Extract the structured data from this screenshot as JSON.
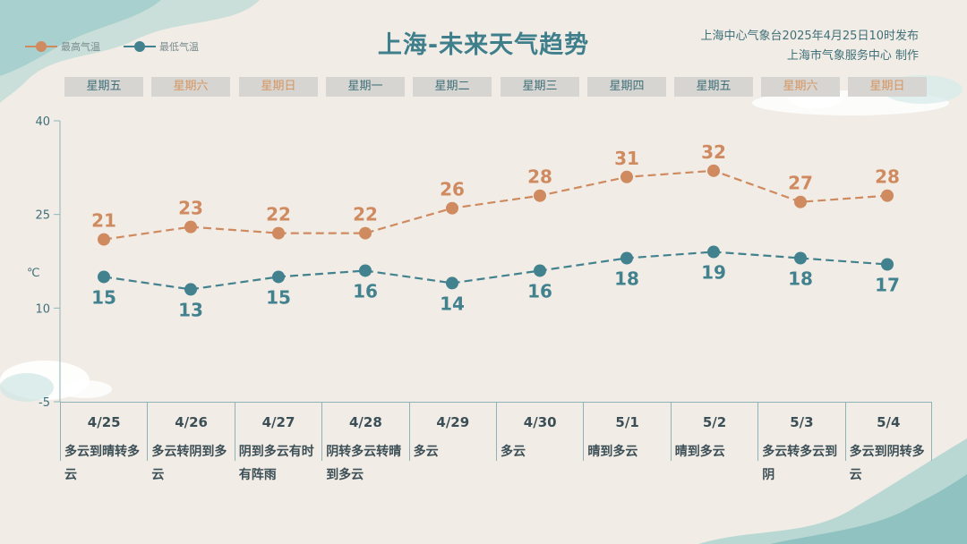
{
  "header": {
    "title": "上海-未来天气趋势",
    "issuer_line1": "上海中心气象台2025年4月25日10时发布",
    "issuer_line2": "上海市气象服务中心 制作"
  },
  "legend": {
    "high": "最高气温",
    "low": "最低气温"
  },
  "colors": {
    "high": "#cf8a60",
    "low": "#42818e"
  },
  "unit": "℃",
  "weekdays": [
    {
      "label": "星期五",
      "weekend": false
    },
    {
      "label": "星期六",
      "weekend": true
    },
    {
      "label": "星期日",
      "weekend": true
    },
    {
      "label": "星期一",
      "weekend": false
    },
    {
      "label": "星期二",
      "weekend": false
    },
    {
      "label": "星期三",
      "weekend": false
    },
    {
      "label": "星期四",
      "weekend": false
    },
    {
      "label": "星期五",
      "weekend": false
    },
    {
      "label": "星期六",
      "weekend": true
    },
    {
      "label": "星期日",
      "weekend": true
    }
  ],
  "days": [
    {
      "date": "4/25",
      "cond": "多云到晴转多云"
    },
    {
      "date": "4/26",
      "cond": "多云转阴到多云"
    },
    {
      "date": "4/27",
      "cond": "阴到多云有时有阵雨"
    },
    {
      "date": "4/28",
      "cond": "阴转多云转晴到多云"
    },
    {
      "date": "4/29",
      "cond": "多云"
    },
    {
      "date": "4/30",
      "cond": "多云"
    },
    {
      "date": "5/1",
      "cond": "晴到多云"
    },
    {
      "date": "5/2",
      "cond": "晴到多云"
    },
    {
      "date": "5/3",
      "cond": "多云转多云到阴"
    },
    {
      "date": "5/4",
      "cond": "多云到阴转多云"
    }
  ],
  "chart_data": {
    "type": "line",
    "title": "上海-未来天气趋势",
    "categories": [
      "4/25",
      "4/26",
      "4/27",
      "4/28",
      "4/29",
      "4/30",
      "5/1",
      "5/2",
      "5/3",
      "5/4"
    ],
    "ylabel": "℃",
    "ylim": [
      -5,
      40
    ],
    "yticks": [
      -5,
      10,
      25,
      40
    ],
    "series": [
      {
        "name": "最高气温",
        "values": [
          21,
          23,
          22,
          22,
          26,
          28,
          31,
          32,
          27,
          28
        ]
      },
      {
        "name": "最低气温",
        "values": [
          15,
          13,
          15,
          16,
          14,
          16,
          18,
          19,
          18,
          17
        ]
      }
    ]
  }
}
